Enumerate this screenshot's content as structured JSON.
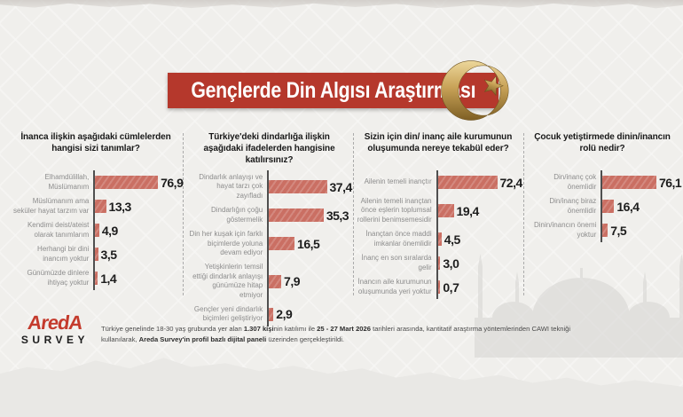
{
  "header": {
    "title": "Gençlerde Din Algısı Araştırması"
  },
  "colors": {
    "banner_red": "#b5382c",
    "bar_salmon": "#ca6f63",
    "gold": "#c2a05c",
    "background": "#f0efec"
  },
  "footer": {
    "logo_top": "AredA",
    "logo_bottom": "SURVEY",
    "note_segments": [
      "Türkiye genelinde 18-30 yaş grubunda yer alan ",
      "1.307 kişi",
      "nin katılımı ile ",
      "25 - 27 Mart 2026",
      " tarihleri arasında, kantitatif araştırma yöntemlerinden CAWI tekniği kullanılarak, ",
      "Areda Survey'in profil bazlı dijital paneli",
      " üzerinden gerçekleştirildi."
    ]
  },
  "chart_data": [
    {
      "type": "bar",
      "orientation": "horizontal",
      "title": "İnanca ilişkin aşağıdaki cümlelerden hangisi sizi tanımlar?",
      "categories": [
        "Elhamdülillah, Müslümanım",
        "Müslümanım ama seküler hayat tarzım var",
        "Kendimi deist/ateist olarak tanımlarım",
        "Herhangi bir dini inancım yoktur",
        "Günümüzde dinlere ihtiyaç yoktur"
      ],
      "values": [
        76.9,
        13.3,
        4.9,
        3.5,
        1.4
      ],
      "value_labels": [
        "76,9",
        "13,3",
        "4,9",
        "3,5",
        "1,4"
      ],
      "xlim": [
        0,
        100
      ],
      "unit": "%",
      "grid": false,
      "legend": "none"
    },
    {
      "type": "bar",
      "orientation": "horizontal",
      "title": "Türkiye'deki dindarlığa ilişkin aşağıdaki ifadelerden hangisine katılırsınız?",
      "categories": [
        "Dindarlık anlayışı ve hayat tarzı çok zayıfladı",
        "Dindarlığın çoğu göstermelik",
        "Din her kuşak için farklı biçimlerde yoluna devam ediyor",
        "Yetişkinlerin temsil ettiği dindarlık anlayışı günümüze hitap etmiyor",
        "Gençler yeni dindarlık biçimleri geliştiriyor"
      ],
      "values": [
        37.4,
        35.3,
        16.5,
        7.9,
        2.9
      ],
      "value_labels": [
        "37,4",
        "35,3",
        "16,5",
        "7,9",
        "2,9"
      ],
      "xlim": [
        0,
        100
      ],
      "unit": "%",
      "grid": false,
      "legend": "none"
    },
    {
      "type": "bar",
      "orientation": "horizontal",
      "title": "Sizin için din/ inanç aile kurumunun oluşumunda nereye tekabül eder?",
      "categories": [
        "Ailenin temeli inançtır",
        "Ailenin temeli inançtan önce eşlerin toplumsal rollerini benimsemesidir",
        "İnançtan önce maddi imkanlar önemlidir",
        "İnanç en son sıralarda gelir",
        "İnancın aile kurumunun oluşumunda yeri yoktur"
      ],
      "values": [
        72.4,
        19.4,
        4.5,
        3.0,
        0.7
      ],
      "value_labels": [
        "72,4",
        "19,4",
        "4,5",
        "3,0",
        "0,7"
      ],
      "xlim": [
        0,
        100
      ],
      "unit": "%",
      "grid": false,
      "legend": "none"
    },
    {
      "type": "bar",
      "orientation": "horizontal",
      "title": "Çocuk yetiştirmede dinin/inancın rolü nedir?",
      "categories": [
        "Din/inanç çok önemlidir",
        "Din/inanç biraz önemlidir",
        "Dinin/inancın önemi yoktur"
      ],
      "values": [
        76.1,
        16.4,
        7.5
      ],
      "value_labels": [
        "76,1",
        "16,4",
        "7,5"
      ],
      "xlim": [
        0,
        100
      ],
      "unit": "%",
      "grid": false,
      "legend": "none"
    }
  ]
}
